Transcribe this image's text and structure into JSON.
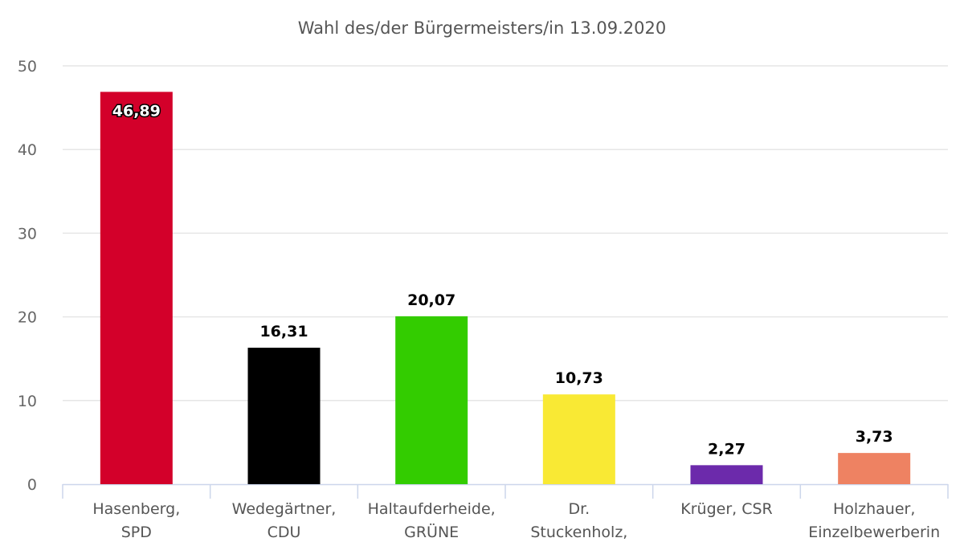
{
  "chart_data": {
    "type": "bar",
    "title": "Wahl des/der Bürgermeisters/in 13.09.2020",
    "categories": [
      [
        "Hasenberg,",
        "SPD"
      ],
      [
        "Wedegärtner,",
        "CDU"
      ],
      [
        "Haltaufderheide,",
        "GRÜNE"
      ],
      [
        "Dr.",
        "Stuckenholz,"
      ],
      [
        "Krüger, CSR"
      ],
      [
        "Holzhauer,",
        "Einzelbewerberin"
      ]
    ],
    "values": [
      46.89,
      16.31,
      20.07,
      10.73,
      2.27,
      3.73
    ],
    "data_labels": [
      "46,89",
      "16,31",
      "20,07",
      "10,73",
      "2,27",
      "3,73"
    ],
    "colors": [
      "#d3002a",
      "#000000",
      "#33cc00",
      "#f9e934",
      "#6c2aab",
      "#ee8262"
    ],
    "ylim": [
      0,
      50
    ],
    "yticks": [
      0,
      10,
      20,
      30,
      40,
      50
    ],
    "grid": true,
    "legend": "none"
  }
}
